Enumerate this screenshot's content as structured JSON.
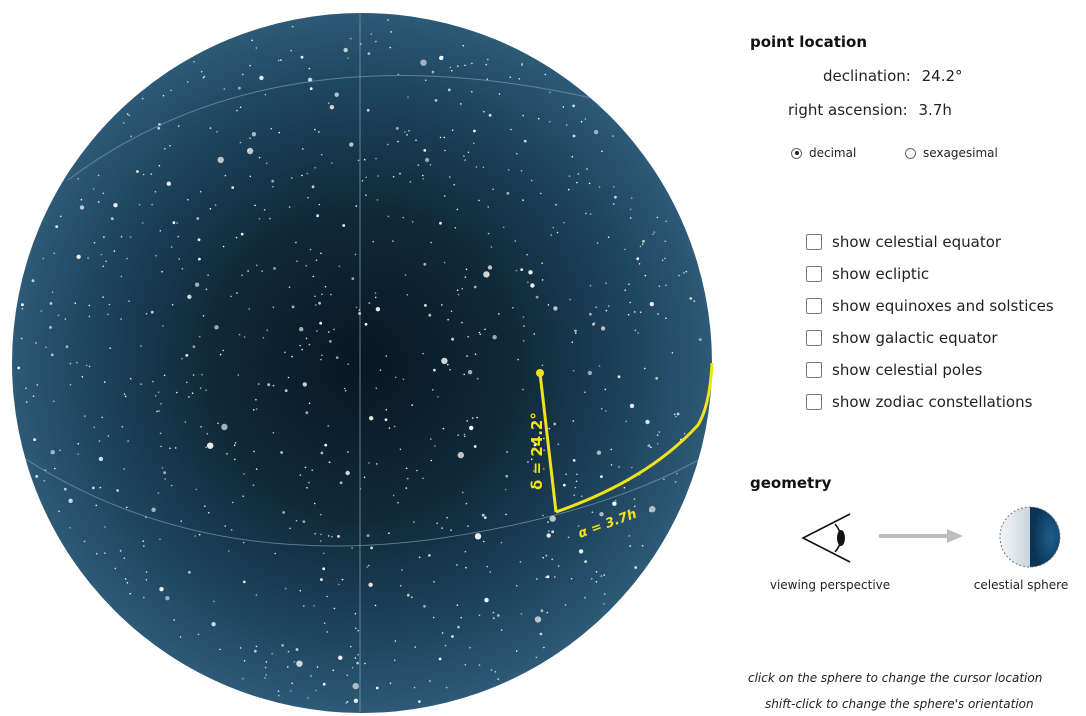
{
  "point_location": {
    "title": "point location",
    "declination_label": "declination:",
    "declination_value": "24.2°",
    "ra_label": "right ascension:",
    "ra_value": "3.7h",
    "format_options": [
      {
        "label": "decimal",
        "selected": true
      },
      {
        "label": "sexagesimal",
        "selected": false
      }
    ]
  },
  "options": [
    {
      "label": "show celestial equator",
      "checked": false
    },
    {
      "label": "show ecliptic",
      "checked": false
    },
    {
      "label": "show equinoxes and solstices",
      "checked": false
    },
    {
      "label": "show galactic equator",
      "checked": false
    },
    {
      "label": "show celestial poles",
      "checked": false
    },
    {
      "label": "show zodiac constellations",
      "checked": false
    }
  ],
  "geometry": {
    "title": "geometry",
    "viewing_label": "viewing perspective",
    "sphere_label": "celestial sphere"
  },
  "sphere": {
    "delta_label": "δ = 24.2°",
    "alpha_label": "α = 3.7h",
    "declination_deg": 24.2,
    "right_ascension_h": 3.7
  },
  "hints": {
    "click": "click on the sphere to change the cursor location",
    "shift_click": "shift-click to change the sphere's orientation"
  },
  "colors": {
    "sphere_center": "#0a1a24",
    "sphere_edge": "#2a5470",
    "grid": "#7a9aad",
    "marker": "#f2e21a",
    "stars": "#ffffff",
    "sphere_icon_dark": "#0d3e62"
  }
}
